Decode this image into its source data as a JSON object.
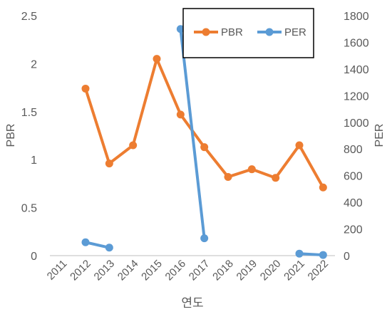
{
  "chart_data": {
    "type": "line",
    "x_categories": [
      "2011",
      "2012",
      "2013",
      "2014",
      "2015",
      "2016",
      "2017",
      "2018",
      "2019",
      "2020",
      "2021",
      "2022"
    ],
    "xlabel": "연도",
    "ylabel_left": "PBR",
    "ylabel_right": "PER",
    "ylim_left": [
      0,
      2.5
    ],
    "ylim_right": [
      0,
      1800
    ],
    "yticks_left": [
      "0",
      "0.5",
      "1",
      "1.5",
      "2",
      "2.5"
    ],
    "yticks_right": [
      "0",
      "200",
      "400",
      "600",
      "800",
      "1000",
      "1200",
      "1400",
      "1600",
      "1800"
    ],
    "grid": false,
    "legend_position": "top-right",
    "series": [
      {
        "name": "PBR",
        "axis": "left",
        "color": "#ED7D31",
        "x": [
          1.5,
          2.5,
          3.5,
          4.5,
          5.5,
          6.5,
          7.5,
          8.5,
          9.5,
          10.5,
          11.5
        ],
        "values": [
          1.74,
          0.96,
          1.15,
          2.05,
          1.47,
          1.13,
          0.82,
          0.9,
          0.81,
          1.15,
          0.71
        ]
      },
      {
        "name": "PER",
        "axis": "right",
        "color": "#5B9BD5",
        "x": [
          1.5,
          2.5,
          5.5,
          6.5,
          10.5,
          11.5
        ],
        "values": [
          100,
          60,
          1700,
          130,
          15,
          5
        ],
        "segments": [
          [
            0,
            1
          ],
          [
            2,
            3
          ],
          [
            4,
            5
          ]
        ]
      }
    ]
  }
}
